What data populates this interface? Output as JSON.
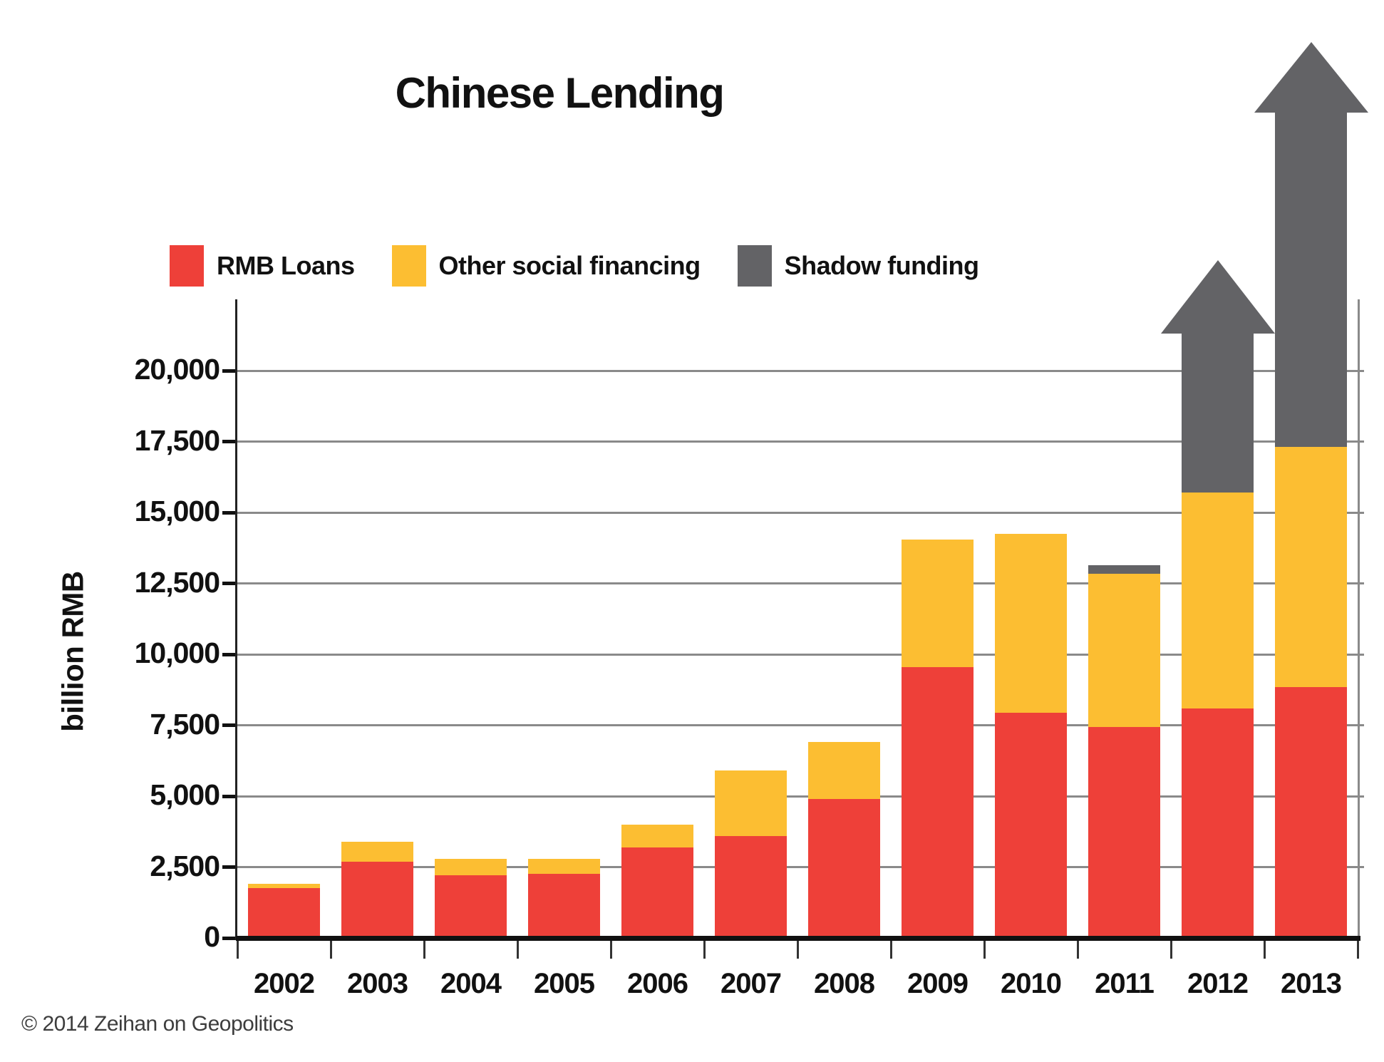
{
  "title": "Chinese Lending",
  "y_axis_unit_label": "billion RMB",
  "copyright": "© 2014 Zeihan on Geopolitics",
  "legend": [
    {
      "label": "RMB Loans",
      "color": "#EE4039"
    },
    {
      "label": "Other social financing",
      "color": "#FCBE32"
    },
    {
      "label": "Shadow funding",
      "color": "#636366"
    }
  ],
  "colors": {
    "rmb_loans": "#EE4039",
    "other_social_financing": "#FCBE32",
    "shadow_funding": "#636366",
    "gridline": "#8a8a8a",
    "axis": "#111111",
    "gradient_bar_top": "#F5A84E",
    "gradient_bar_bottom": "#FEF8EE"
  },
  "chart_data": {
    "type": "bar",
    "stacked": true,
    "title": "Chinese Lending",
    "ylabel": "billion RMB",
    "xlabel": "",
    "ylim": [
      0,
      20000
    ],
    "grid": true,
    "legend_position": "top",
    "categories": [
      "2002",
      "2003",
      "2004",
      "2005",
      "2006",
      "2007",
      "2008",
      "2009",
      "2010",
      "2011",
      "2012",
      "2013"
    ],
    "series": [
      {
        "name": "RMB Loans",
        "color": "#EE4039",
        "values": [
          1750,
          2700,
          2200,
          2250,
          3200,
          3600,
          4900,
          9550,
          7950,
          7450,
          8100,
          8850
        ]
      },
      {
        "name": "Other social financing",
        "color": "#FCBE32",
        "values": [
          150,
          700,
          600,
          550,
          800,
          2300,
          2000,
          4500,
          6300,
          5400,
          7600,
          8450
        ]
      },
      {
        "name": "Shadow funding",
        "color": "#636366",
        "values": [
          0,
          0,
          0,
          0,
          0,
          0,
          0,
          0,
          0,
          300,
          null,
          null
        ],
        "note": "2012 and 2013 shadow funding drawn as gray arrows extending beyond the top of the chart"
      }
    ],
    "offchart_arrows": [
      {
        "category": "2012",
        "starts_at": 15700,
        "head_base": 21300,
        "tip": 23900
      },
      {
        "category": "2013",
        "starts_at": 17300,
        "head_base": 29100,
        "tip": 31600
      }
    ],
    "y_ticks": [
      {
        "value": 20000,
        "label": "20,000"
      },
      {
        "value": 17500,
        "label": "17,500"
      },
      {
        "value": 15000,
        "label": "15,000"
      },
      {
        "value": 12500,
        "label": "12,500"
      },
      {
        "value": 10000,
        "label": "10,000"
      },
      {
        "value": 7500,
        "label": "7,500"
      },
      {
        "value": 5000,
        "label": "5,000"
      },
      {
        "value": 2500,
        "label": "2,500"
      },
      {
        "value": 0,
        "label": "0"
      }
    ]
  }
}
